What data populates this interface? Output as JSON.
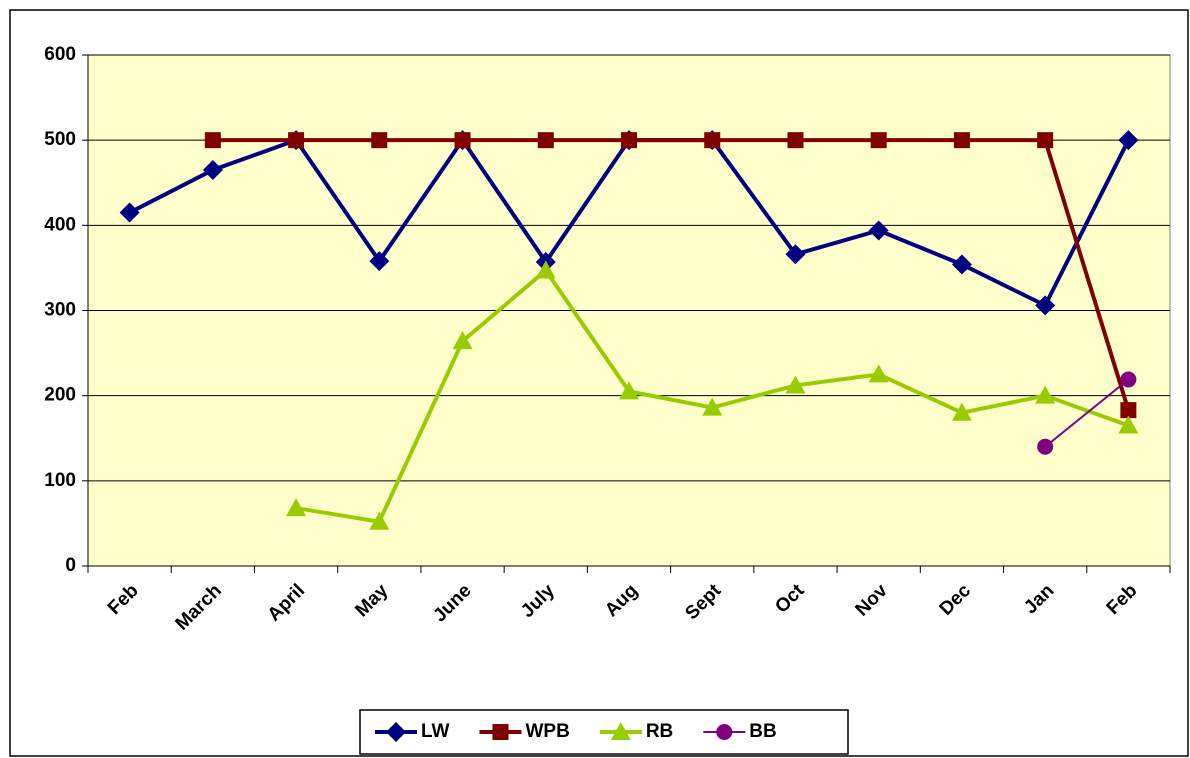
{
  "chart_data": {
    "type": "line",
    "categories": [
      "Feb",
      "March",
      "April",
      "May",
      "June",
      "July",
      "Aug",
      "Sept",
      "Oct",
      "Nov",
      "Dec",
      "Jan",
      "Feb"
    ],
    "series": [
      {
        "name": "LW",
        "color": "#000080",
        "marker": "diamond",
        "values": [
          415,
          465,
          500,
          358,
          500,
          357,
          500,
          500,
          366,
          394,
          354,
          306,
          500
        ]
      },
      {
        "name": "WPB",
        "color": "#800000",
        "marker": "square",
        "values": [
          null,
          500,
          500,
          500,
          500,
          500,
          500,
          500,
          500,
          500,
          500,
          500,
          183
        ]
      },
      {
        "name": "RB",
        "color": "#99CC00",
        "marker": "triangle",
        "values": [
          null,
          null,
          68,
          52,
          264,
          347,
          205,
          186,
          212,
          225,
          180,
          200,
          165
        ]
      },
      {
        "name": "BB",
        "color": "#800080",
        "marker": "circle",
        "values": [
          null,
          null,
          null,
          null,
          null,
          null,
          null,
          null,
          null,
          null,
          null,
          140,
          219
        ]
      }
    ],
    "ylim": [
      0,
      600
    ],
    "yticks": [
      0,
      100,
      200,
      300,
      400,
      500,
      600
    ],
    "grid": true,
    "legend": "bottom",
    "plot_background": "#FFFFCC"
  }
}
